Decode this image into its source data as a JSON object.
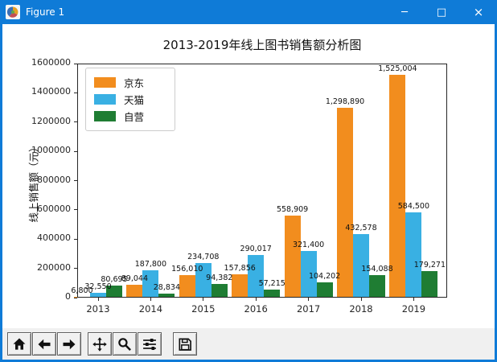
{
  "window": {
    "title": "Figure 1",
    "controls": {
      "minimize": "─",
      "maximize": "□",
      "close": "×"
    }
  },
  "toolbar": {
    "buttons": [
      "home",
      "back",
      "forward",
      "pan",
      "zoom-to-rect",
      "configure-subplots",
      "save"
    ]
  },
  "chart_data": {
    "type": "bar",
    "title": "2013-2019年线上图书销售额分析图",
    "xlabel": "",
    "ylabel": "线上销售额（元）",
    "categories": [
      "2013",
      "2014",
      "2015",
      "2016",
      "2017",
      "2018",
      "2019"
    ],
    "series": [
      {
        "name": "京东",
        "color": "#f28d1e",
        "values": [
          6800,
          89044,
          156010,
          157856,
          558909,
          1298890,
          1525004
        ]
      },
      {
        "name": "天猫",
        "color": "#39b0e3",
        "values": [
          32550,
          187800,
          234708,
          290017,
          321400,
          432578,
          584500
        ]
      },
      {
        "name": "自营",
        "color": "#1f7d33",
        "values": [
          80695,
          28834,
          94382,
          57215,
          104202,
          154088,
          179271
        ]
      }
    ],
    "ylim": [
      0,
      1600000
    ],
    "yticks": [
      0,
      200000,
      400000,
      600000,
      800000,
      1000000,
      1200000,
      1400000,
      1600000
    ],
    "bar_value_labels": true,
    "legend_position": "upper left",
    "grid": false,
    "colors": {
      "titlebar": "#0f7bd7",
      "figure_bg": "#ffffff",
      "toolbar_bg": "#f0f0f0",
      "spine": "#262626"
    }
  }
}
